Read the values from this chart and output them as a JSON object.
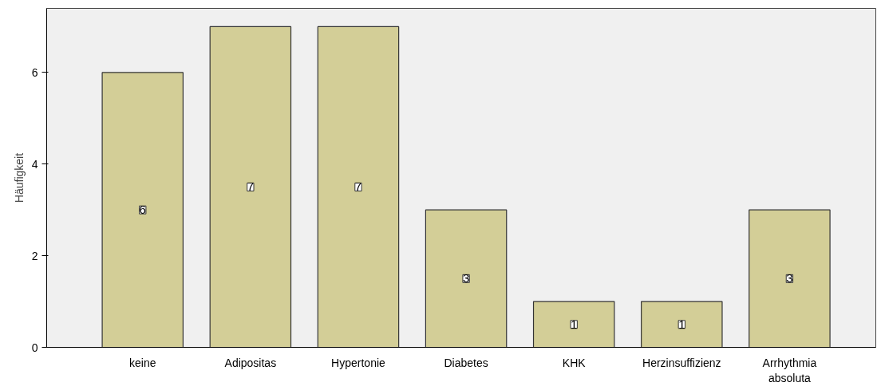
{
  "chart_data": {
    "type": "bar",
    "ylabel": "Häufigkeit",
    "categories": [
      "keine",
      "Adipositas",
      "Hypertonie",
      "Diabetes",
      "KHK",
      "Herzinsuffizienz",
      "Arrhythmia absoluta"
    ],
    "values": [
      6,
      7,
      7,
      3,
      1,
      1,
      3
    ],
    "color": "#d3ce97",
    "ylim": [
      0,
      7.4
    ],
    "yticks": [
      0,
      2,
      4,
      6
    ],
    "grid": false,
    "data_labels": true
  }
}
